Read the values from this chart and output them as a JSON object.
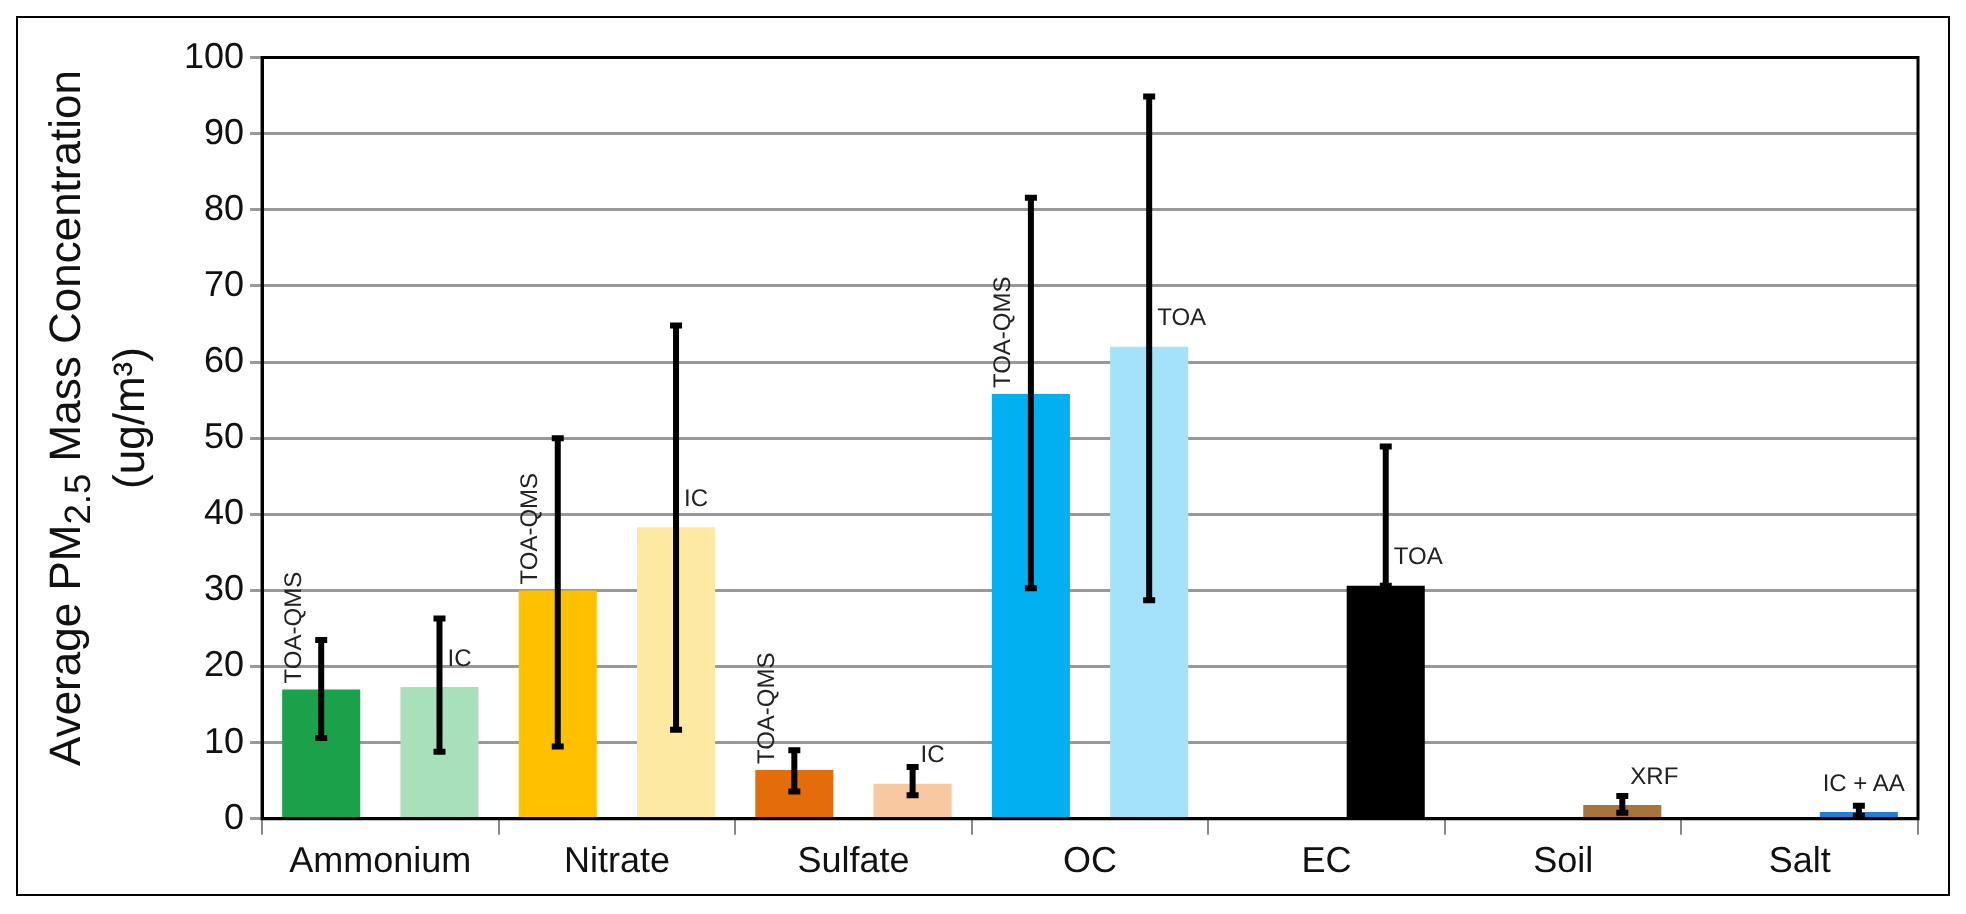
{
  "chart_data": {
    "type": "bar",
    "ylabel": "Average PM$_{2.5}$ Mass Concentration (ug/m³)",
    "categories": [
      "Ammonium",
      "Nitrate",
      "Sulfate",
      "OC",
      "EC",
      "Soil",
      "Salt"
    ],
    "series": [
      {
        "colors": [
          "#1aa14a",
          "#ffc000",
          "#e46c0a",
          "#00b0f0",
          null,
          null,
          null
        ],
        "values": [
          17,
          30,
          6.4,
          55.8,
          null,
          null,
          null
        ],
        "errors": [
          [
            10.6,
            23.5
          ],
          [
            9.5,
            50
          ],
          [
            3.6,
            9
          ],
          [
            30.3,
            81.6
          ],
          null,
          null,
          null
        ],
        "value_labels": [
          "TOA-QMS",
          "TOA-QMS",
          "TOA-QMS",
          "TOA-QMS",
          null,
          null,
          null
        ]
      },
      {
        "colors": [
          "#a8e0bb",
          "#fde9a2",
          "#f8c8a0",
          "#a3e2f8",
          "#000000",
          "#a9743a",
          "#1f7ed6"
        ],
        "values": [
          17.3,
          38.3,
          4.6,
          62,
          30.6,
          1.8,
          0.9
        ],
        "errors": [
          [
            8.8,
            26.3
          ],
          [
            11.7,
            64.8
          ],
          [
            3.1,
            6.8
          ],
          [
            28.7,
            94.9
          ],
          [
            30.6,
            48.9
          ],
          [
            0.8,
            3
          ],
          [
            0.4,
            1.7
          ]
        ],
        "value_labels": [
          "IC",
          "IC",
          "IC",
          "TOA",
          "TOA",
          "XRF",
          "IC + AA"
        ]
      }
    ],
    "ylim": [
      0,
      100
    ],
    "yticks": [
      0,
      10,
      20,
      30,
      40,
      50,
      60,
      70,
      80,
      90,
      100
    ],
    "grid": "y",
    "legend": false
  }
}
